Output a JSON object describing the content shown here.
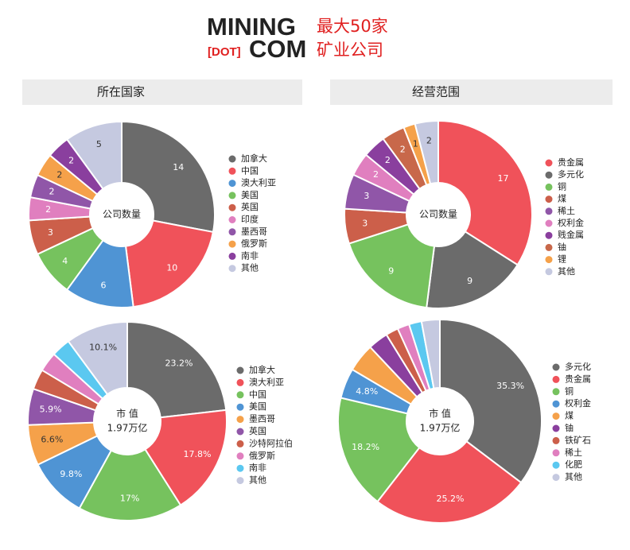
{
  "header": {
    "logo_line1": "MINING",
    "logo_dot": "[DOT]",
    "logo_line2": "COM",
    "title_line1": "最大50家",
    "title_line2": "矿业公司"
  },
  "sections": [
    "所在国家",
    "经营范围"
  ],
  "chart_data": [
    {
      "type": "donut",
      "center_label": "公司数量",
      "categories": [
        "加拿大",
        "中国",
        "澳大利亚",
        "美国",
        "英国",
        "印度",
        "墨西哥",
        "俄罗斯",
        "南非",
        "其他"
      ],
      "values": [
        14,
        10,
        6,
        4,
        3,
        2,
        2,
        2,
        2,
        5
      ],
      "colors": [
        "#6b6b6b",
        "#f0525a",
        "#4f94d4",
        "#76c25e",
        "#cc5f4a",
        "#e07fbf",
        "#9056a8",
        "#f5a14a",
        "#8a3f9e",
        "#c5c9e0"
      ]
    },
    {
      "type": "donut",
      "center_label": "公司数量",
      "categories": [
        "贵金属",
        "多元化",
        "铜",
        "煤",
        "稀土",
        "权利金",
        "贱金属",
        "铀",
        "锂",
        "其他"
      ],
      "values": [
        17,
        9,
        9,
        3,
        3,
        2,
        2,
        2,
        1,
        2
      ],
      "colors": [
        "#f0525a",
        "#6b6b6b",
        "#76c25e",
        "#cc5f4a",
        "#9056a8",
        "#e07fbf",
        "#8a3f9e",
        "#c8684a",
        "#f5a14a",
        "#c5c9e0"
      ]
    },
    {
      "type": "donut",
      "center_label": "市 值",
      "center_sublabel": "1.97万亿",
      "categories": [
        "加拿大",
        "澳大利亚",
        "中国",
        "美国",
        "墨西哥",
        "英国",
        "沙特阿拉伯",
        "俄罗斯",
        "南非",
        "其他"
      ],
      "values": [
        23.2,
        17.8,
        17,
        9.8,
        6.6,
        5.9,
        3.3,
        3.2,
        3.1,
        10.1
      ],
      "value_labels": [
        "23.2%",
        "17.8%",
        "17%",
        "9.8%",
        "6.6%",
        "5.9%",
        null,
        null,
        null,
        "10.1%"
      ],
      "colors": [
        "#6b6b6b",
        "#f0525a",
        "#76c25e",
        "#4f94d4",
        "#f5a14a",
        "#9056a8",
        "#cc5f4a",
        "#e07fbf",
        "#5bc8f0",
        "#c5c9e0"
      ]
    },
    {
      "type": "donut",
      "center_label": "市 值",
      "center_sublabel": "1.97万亿",
      "categories": [
        "多元化",
        "贵金属",
        "铜",
        "权利金",
        "煤",
        "铀",
        "铁矿石",
        "稀土",
        "化肥",
        "其他"
      ],
      "values": [
        35.3,
        25.2,
        18.2,
        4.8,
        4.5,
        3.2,
        2.0,
        1.9,
        2.0,
        2.9
      ],
      "value_labels": [
        "35.3%",
        "25.2%",
        "18.2%",
        "4.8%",
        null,
        null,
        null,
        null,
        null,
        null
      ],
      "colors": [
        "#6b6b6b",
        "#f0525a",
        "#76c25e",
        "#4f94d4",
        "#f5a14a",
        "#8a3f9e",
        "#cc5f4a",
        "#e07fbf",
        "#5bc8f0",
        "#c5c9e0"
      ]
    }
  ]
}
